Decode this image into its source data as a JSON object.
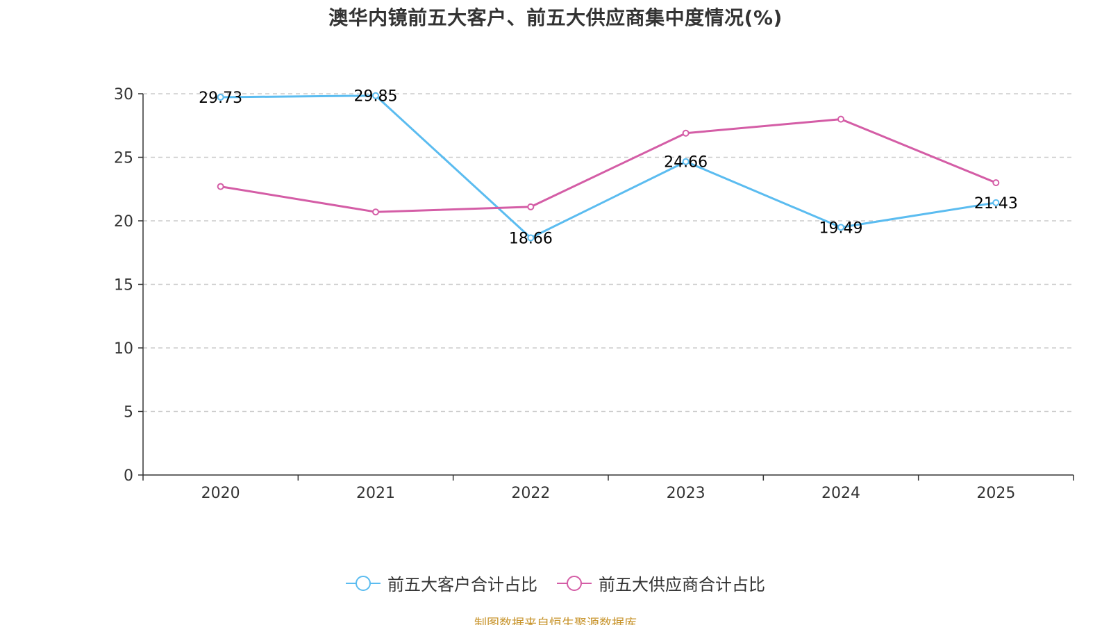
{
  "chart_data": {
    "type": "line",
    "title": "澳华内镜前五大客户、前五大供应商集中度情况(%)",
    "categories": [
      "2020",
      "2021",
      "2022",
      "2023",
      "2024",
      "2025"
    ],
    "ylim": [
      0,
      30
    ],
    "yticks": [
      0,
      5,
      10,
      15,
      20,
      25,
      30
    ],
    "ytick_labels": [
      "0",
      "5",
      "10",
      "15",
      "20",
      "25",
      "30"
    ],
    "grid": true,
    "legend_position": "bottom-center",
    "series": [
      {
        "name": "前五大客户合计占比",
        "color": "#5bbcf0",
        "values": [
          29.73,
          29.85,
          18.66,
          24.66,
          19.49,
          21.43
        ],
        "data_labels": [
          "29.73",
          "29.85",
          "18.66",
          "24.66",
          "19.49",
          "21.43"
        ]
      },
      {
        "name": "前五大供应商合计占比",
        "color": "#d45da6",
        "values": [
          22.7,
          20.7,
          21.1,
          26.9,
          28.0,
          23.0
        ]
      }
    ]
  },
  "source_note": "制图数据来自恒生聚源数据库"
}
